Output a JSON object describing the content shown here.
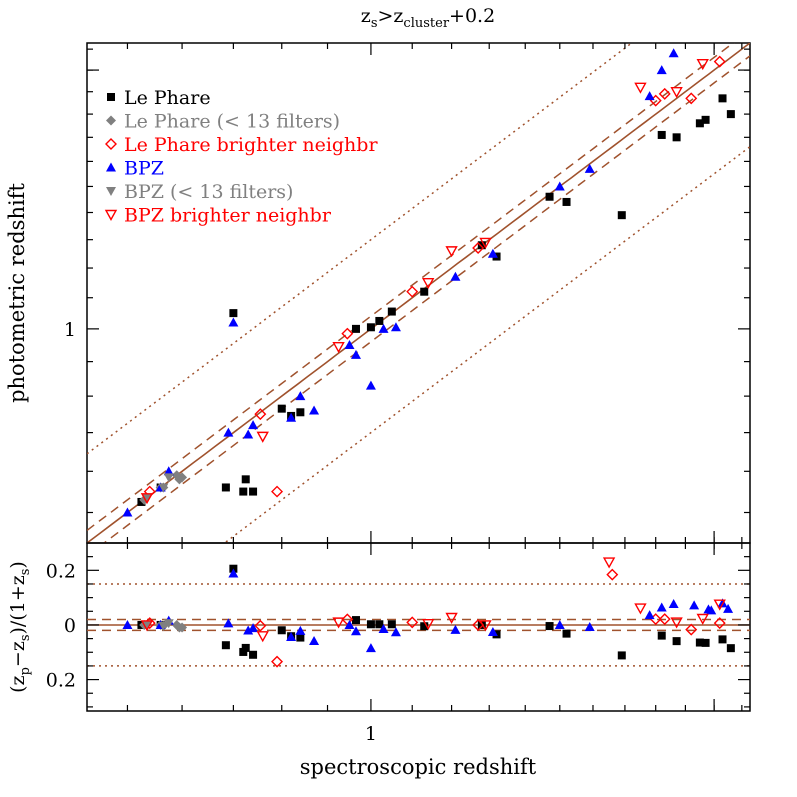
{
  "chart_data": {
    "type": "scatter",
    "title": "z_s>z_cluster+0.2",
    "title_parts": {
      "z1": "z",
      "sub1": "s",
      "gt": ">z",
      "sub2": "cluster",
      "tail": "+0.2"
    },
    "xlabel": "spectroscopic redshift",
    "ylabel_top": "photometric redshift",
    "ylabel_bottom": "(z_p−z_s)/(1+z_s)",
    "ylabel_bottom_parts": {
      "a": "(z",
      "sa": "p",
      "b": "−z",
      "sb": "s",
      "c": ")/(1+z",
      "sc": "s",
      "d": ")"
    },
    "x_scale": "log(1+z)",
    "y_top_scale": "log(1+z)",
    "xlim": [
      0.43,
      2.13
    ],
    "ylim_top": [
      0.43,
      2.13
    ],
    "ylim_bottom": [
      -0.315,
      0.3
    ],
    "x_ticks": [
      {
        "value": 1,
        "label": "1"
      }
    ],
    "y_top_ticks": [
      {
        "value": 1,
        "label": "1"
      }
    ],
    "y_bottom_ticks": [
      {
        "value": 0.2,
        "label": "0.2"
      },
      {
        "value": 0,
        "label": "0"
      },
      {
        "value": -0.2,
        "label": "0.2"
      }
    ],
    "reference_lines": {
      "solid": 0,
      "dashed": 0.02,
      "dotted": 0.15
    },
    "colors": {
      "ref_line": "#a0522d",
      "blue": "#0000ff",
      "red": "#ff0000",
      "gray": "#808080",
      "black": "#000000"
    },
    "legend_position": "top-left",
    "legend": [
      {
        "label": "Le Phare",
        "marker": "square",
        "color": "#000000"
      },
      {
        "label": "Le Phare (< 13 filters)",
        "marker": "diamond",
        "color": "#808080"
      },
      {
        "label": "Le Phare brighter neighbr",
        "marker": "diamond-open",
        "color": "#ff0000"
      },
      {
        "label": "BPZ",
        "marker": "triangle",
        "color": "#0000ff"
      },
      {
        "label": "BPZ (< 13 filters)",
        "marker": "triangle-down",
        "color": "#808080"
      },
      {
        "label": "BPZ brighter neighbr",
        "marker": "triangle-down-open",
        "color": "#ff0000"
      }
    ],
    "series": [
      {
        "name": "Le Phare",
        "marker": "square",
        "color": "#000000",
        "points": [
          [
            0.525,
            0.525
          ],
          [
            0.56,
            0.56
          ],
          [
            0.685,
            0.56
          ],
          [
            0.7,
            1.05
          ],
          [
            0.72,
            0.55
          ],
          [
            0.725,
            0.58
          ],
          [
            0.74,
            0.55
          ],
          [
            0.8,
            0.765
          ],
          [
            0.82,
            0.745
          ],
          [
            0.84,
            0.755
          ],
          [
            0.965,
            1.0
          ],
          [
            1.0,
            1.005
          ],
          [
            1.02,
            1.025
          ],
          [
            1.05,
            1.055
          ],
          [
            1.13,
            1.12
          ],
          [
            1.28,
            1.28
          ],
          [
            1.32,
            1.24
          ],
          [
            1.47,
            1.46
          ],
          [
            1.52,
            1.44
          ],
          [
            1.69,
            1.39
          ],
          [
            1.82,
            1.71
          ],
          [
            1.87,
            1.7
          ],
          [
            1.95,
            1.76
          ],
          [
            1.97,
            1.775
          ],
          [
            2.03,
            1.87
          ],
          [
            2.06,
            1.8
          ]
        ]
      },
      {
        "name": "Le Phare (< 13 filters)",
        "marker": "diamond",
        "color": "#808080",
        "points": [
          [
            0.53,
            0.53
          ],
          [
            0.56,
            0.56
          ],
          [
            0.565,
            0.56
          ],
          [
            0.59,
            0.59
          ],
          [
            0.595,
            0.58
          ],
          [
            0.6,
            0.585
          ]
        ]
      },
      {
        "name": "Le Phare brighter neighbr",
        "marker": "diamond-open",
        "color": "#ff0000",
        "points": [
          [
            0.54,
            0.55
          ],
          [
            0.755,
            0.75
          ],
          [
            0.79,
            0.55
          ],
          [
            0.945,
            0.985
          ],
          [
            1.1,
            1.12
          ],
          [
            1.27,
            1.27
          ],
          [
            1.66,
            2.15
          ],
          [
            1.8,
            1.86
          ],
          [
            1.83,
            1.89
          ],
          [
            1.92,
            1.87
          ],
          [
            2.02,
            2.04
          ]
        ]
      },
      {
        "name": "BPZ",
        "marker": "triangle",
        "color": "#0000ff",
        "points": [
          [
            0.5,
            0.5
          ],
          [
            0.56,
            0.56
          ],
          [
            0.575,
            0.6
          ],
          [
            0.69,
            0.7
          ],
          [
            0.7,
            1.02
          ],
          [
            0.73,
            0.695
          ],
          [
            0.74,
            0.72
          ],
          [
            0.82,
            0.74
          ],
          [
            0.84,
            0.8
          ],
          [
            0.87,
            0.76
          ],
          [
            0.95,
            0.95
          ],
          [
            0.965,
            0.92
          ],
          [
            1.0,
            0.83
          ],
          [
            1.03,
            1.0
          ],
          [
            1.06,
            1.005
          ],
          [
            1.21,
            1.17
          ],
          [
            1.31,
            1.25
          ],
          [
            1.5,
            1.5
          ],
          [
            1.59,
            1.57
          ],
          [
            1.78,
            1.88
          ],
          [
            1.82,
            2.0
          ],
          [
            1.86,
            2.08
          ],
          [
            1.93,
            2.14
          ],
          [
            1.98,
            2.15
          ],
          [
            1.99,
            2.15
          ],
          [
            2.03,
            2.27
          ],
          [
            2.05,
            2.23
          ]
        ]
      },
      {
        "name": "BPZ (< 13 filters)",
        "marker": "triangle-down",
        "color": "#808080",
        "points": [
          [
            0.535,
            0.535
          ],
          [
            0.565,
            0.56
          ],
          [
            0.575,
            0.585
          ]
        ]
      },
      {
        "name": "BPZ brighter neighbr",
        "marker": "triangle-down-open",
        "color": "#ff0000",
        "points": [
          [
            0.535,
            0.535
          ],
          [
            0.76,
            0.69
          ],
          [
            0.925,
            0.945
          ],
          [
            1.14,
            1.15
          ],
          [
            1.2,
            1.26
          ],
          [
            1.29,
            1.29
          ],
          [
            1.65,
            2.26
          ],
          [
            1.75,
            1.92
          ],
          [
            1.87,
            1.9
          ],
          [
            1.96,
            2.03
          ],
          [
            2.02,
            2.25
          ]
        ]
      }
    ]
  }
}
